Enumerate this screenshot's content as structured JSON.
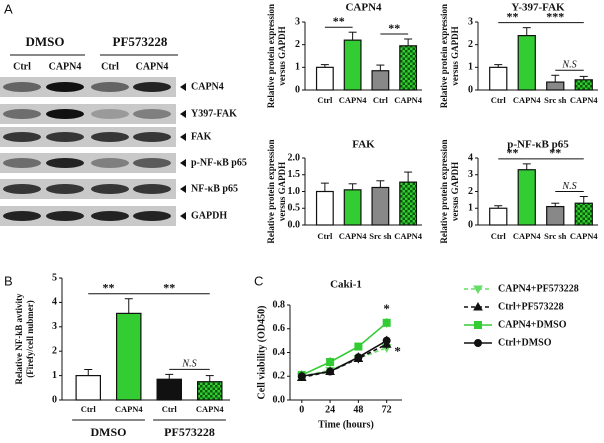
{
  "panel_labels": [
    "A",
    "B",
    "C"
  ],
  "blot": {
    "treatments": [
      "DMSO",
      "PF573228"
    ],
    "lanes": [
      "Ctrl",
      "CAPN4",
      "Ctrl",
      "CAPN4"
    ],
    "rows": [
      "CAPN4",
      "Y397-FAK",
      "FAK",
      "p-NF-κB p65",
      "NF-κB p65",
      "GAPDH"
    ]
  },
  "chart_data": [
    {
      "type": "bar",
      "title": "CAPN4",
      "ylabel": [
        "Relative protein expression",
        "versus GAPDH"
      ],
      "categories": [
        "Ctrl",
        "CAPN4",
        "Ctrl",
        "CAPN4"
      ],
      "values": [
        1.0,
        2.2,
        0.85,
        1.95
      ],
      "errors": [
        0.12,
        0.35,
        0.25,
        0.3
      ],
      "colors": [
        "#ffffff",
        "#33cc33",
        "#888888",
        "#33cc33"
      ],
      "checkered": [
        false,
        false,
        false,
        true
      ],
      "ylim": [
        0,
        3
      ],
      "yticks": [
        0,
        1,
        2,
        3
      ],
      "annotations": [
        {
          "text": "**",
          "from": 0,
          "to": 1
        },
        {
          "text": "**",
          "from": 2,
          "to": 3
        }
      ]
    },
    {
      "type": "bar",
      "title": "Y-397-FAK",
      "ylabel": [
        "Relative protein expression",
        "versus GAPDH"
      ],
      "categories": [
        "Ctrl",
        "CAPN4",
        "Src sh",
        "CAPN4"
      ],
      "values": [
        1.0,
        2.4,
        0.35,
        0.45
      ],
      "errors": [
        0.12,
        0.35,
        0.3,
        0.15
      ],
      "colors": [
        "#ffffff",
        "#33cc33",
        "#888888",
        "#33cc33"
      ],
      "checkered": [
        false,
        false,
        false,
        true
      ],
      "ylim": [
        0,
        3
      ],
      "yticks": [
        0,
        1,
        2,
        3
      ],
      "annotations": [
        {
          "text": "**",
          "from": 0,
          "to": 1
        },
        {
          "text": "***",
          "from": 1,
          "to": 3
        },
        {
          "text": "N.S",
          "from": 2,
          "to": 3
        }
      ]
    },
    {
      "type": "bar",
      "title": "FAK",
      "ylabel": [
        "Relative protein expression",
        "versus GAPDH"
      ],
      "categories": [
        "Ctrl",
        "CAPN4",
        "Src sh",
        "CAPN4"
      ],
      "values": [
        1.0,
        1.05,
        1.12,
        1.28
      ],
      "errors": [
        0.25,
        0.18,
        0.2,
        0.3
      ],
      "colors": [
        "#ffffff",
        "#33cc33",
        "#888888",
        "#33cc33"
      ],
      "checkered": [
        false,
        false,
        false,
        true
      ],
      "ylim": [
        0,
        2
      ],
      "yticks": [
        {
          "value": 0,
          "label": "0.0"
        },
        0.5,
        {
          "value": 1,
          "label": "1.0"
        },
        1.5,
        {
          "value": 2,
          "label": "2.0"
        }
      ],
      "annotations": []
    },
    {
      "type": "bar",
      "title": "p-NF-κB p65",
      "ylabel": [
        "Relative protein expression",
        "versus GAPDH"
      ],
      "categories": [
        "Ctrl",
        "CAPN4",
        "Src sh",
        "CAPN4"
      ],
      "values": [
        1.0,
        3.3,
        1.1,
        1.3
      ],
      "errors": [
        0.15,
        0.35,
        0.2,
        0.4
      ],
      "colors": [
        "#ffffff",
        "#33cc33",
        "#888888",
        "#33cc33"
      ],
      "checkered": [
        false,
        false,
        false,
        true
      ],
      "ylim": [
        0,
        4
      ],
      "yticks": [
        0,
        1,
        2,
        3,
        4
      ],
      "annotations": [
        {
          "text": "**",
          "from": 0,
          "to": 1
        },
        {
          "text": "**",
          "from": 1,
          "to": 3
        },
        {
          "text": "N.S",
          "from": 2,
          "to": 3
        }
      ]
    },
    {
      "type": "bar",
      "ylabel": [
        "Relative NF-kB avtivity",
        "(Firefy/cell nubmer)"
      ],
      "categories": [
        "Ctrl",
        "CAPN4",
        "Ctrl",
        "CAPN4"
      ],
      "values": [
        1.0,
        3.55,
        0.85,
        0.75
      ],
      "errors": [
        0.25,
        0.6,
        0.2,
        0.25
      ],
      "colors": [
        "#ffffff",
        "#33cc33",
        "#111111",
        "#33cc33"
      ],
      "checkered": [
        false,
        false,
        false,
        true
      ],
      "groups": [
        "DMSO",
        "PF573228"
      ],
      "ylim": [
        0,
        5
      ],
      "yticks": [
        0,
        1,
        2,
        3,
        4,
        5
      ],
      "annotations": [
        {
          "text": "**",
          "from": 0,
          "to": 1
        },
        {
          "text": "**",
          "from": 1,
          "to": 3
        },
        {
          "text": "N.S",
          "from": 2,
          "to": 3
        }
      ]
    },
    {
      "type": "line",
      "title": "Caki-1",
      "xlabel": "Time (hours)",
      "ylabel": "Cell viability (OD450)",
      "x": [
        0,
        24,
        48,
        72
      ],
      "xlim": [
        -10,
        85
      ],
      "xticks": [
        0,
        24,
        48,
        72
      ],
      "ylim": [
        0,
        0.8
      ],
      "yticks": [
        {
          "value": 0,
          "label": "0.0"
        },
        0.2,
        0.4,
        0.6,
        0.8
      ],
      "series": [
        {
          "name": "CAPN4+PF573228",
          "color": "#66dd66",
          "dash": true,
          "marker": "triangle-down",
          "values": [
            0.2,
            0.25,
            0.35,
            0.44
          ],
          "errors": [
            0.03,
            0.03,
            0.03,
            0.04
          ]
        },
        {
          "name": "Ctrl+PF573228",
          "color": "#111111",
          "dash": true,
          "marker": "triangle-up",
          "values": [
            0.19,
            0.24,
            0.35,
            0.47
          ],
          "errors": [
            0.03,
            0.03,
            0.04,
            0.04
          ]
        },
        {
          "name": "CAPN4+DMSO",
          "color": "#33cc33",
          "dash": false,
          "marker": "square",
          "values": [
            0.21,
            0.32,
            0.45,
            0.65
          ],
          "errors": [
            0.04,
            0.04,
            0.03,
            0.04
          ]
        },
        {
          "name": "Ctrl+DMSO",
          "color": "#111111",
          "dash": false,
          "marker": "circle",
          "values": [
            0.2,
            0.24,
            0.36,
            0.5
          ],
          "errors": [
            0.04,
            0.03,
            0.04,
            0.04
          ]
        }
      ],
      "annotations": [
        {
          "text": "*",
          "series": 2
        },
        {
          "text": "*",
          "series": 0
        }
      ]
    }
  ]
}
